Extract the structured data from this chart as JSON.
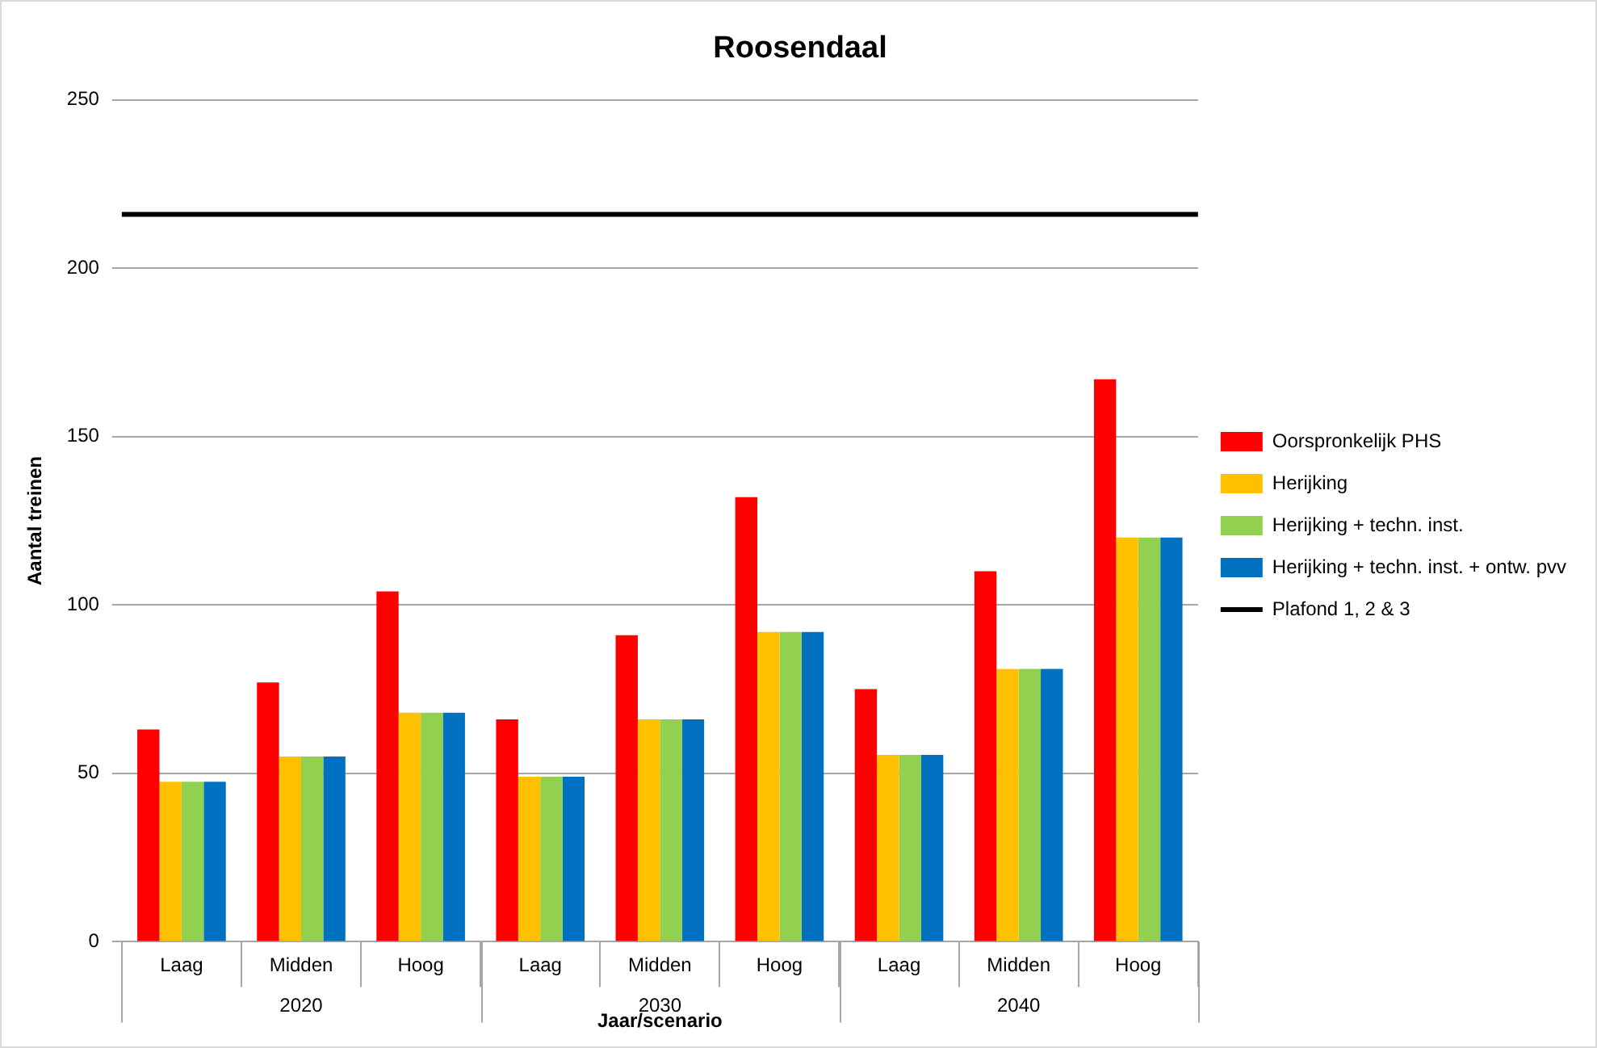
{
  "chart_data": {
    "type": "bar",
    "title": "Roosendaal",
    "xlabel": "Jaar/scenario",
    "ylabel": "Aantal treinen",
    "categories": [
      "Laag",
      "Midden",
      "Hoog",
      "Laag",
      "Midden",
      "Hoog",
      "Laag",
      "Midden",
      "Hoog"
    ],
    "annotations": [
      "2020",
      "2030",
      "2040"
    ],
    "series": [
      {
        "name": "Oorspronkelijk PHS",
        "color": "#ff0000",
        "values": [
          63,
          77,
          104,
          66,
          91,
          132,
          75,
          110,
          167
        ]
      },
      {
        "name": "Herijking",
        "color": "#ffc000",
        "values": [
          47.5,
          55,
          68,
          49,
          66,
          92,
          55.5,
          81,
          120
        ]
      },
      {
        "name": "Herijking + techn. inst.",
        "color": "#92d050",
        "values": [
          47.5,
          55,
          68,
          49,
          66,
          92,
          55.5,
          81,
          120
        ]
      },
      {
        "name": "Herijking + techn. inst. + ontw. pvv",
        "color": "#0070c0",
        "values": [
          47.5,
          55,
          68,
          49,
          66,
          92,
          55.5,
          81,
          120
        ]
      }
    ],
    "ref_lines": [
      {
        "axis": "y",
        "value": 216,
        "label": "Plafond 1, 2 & 3",
        "color": "#000000"
      }
    ],
    "ylim": [
      0,
      250
    ],
    "yticks": [
      0,
      50,
      100,
      150,
      200,
      250
    ],
    "grid": "y",
    "legend": "right"
  }
}
